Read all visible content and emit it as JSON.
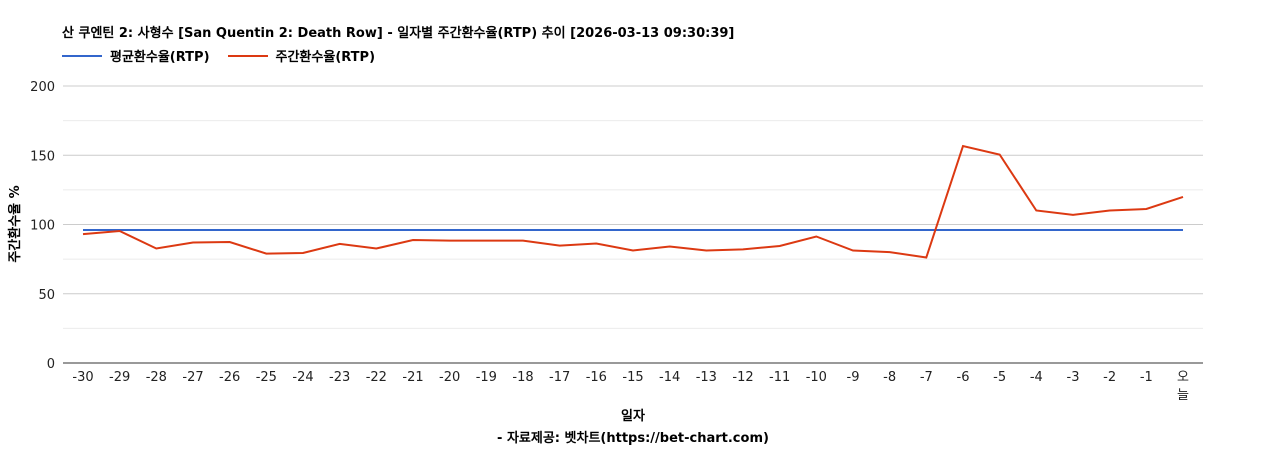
{
  "chart_data": {
    "type": "line",
    "title": "산 쿠엔틴 2: 사형수 [San Quentin 2: Death Row] - 일자별 주간환수율(RTP) 추이 [2026-03-13 09:30:39]",
    "xlabel": "일자",
    "ylabel": "주간환수율 %",
    "footer": "- 자료제공: 벳차트(https://bet-chart.com)",
    "ylim": [
      0,
      200
    ],
    "yticks": [
      "0",
      "50",
      "100",
      "150",
      "200"
    ],
    "grid": true,
    "legend_position": "top-left",
    "categories": [
      "-30",
      "-29",
      "-28",
      "-27",
      "-26",
      "-25",
      "-24",
      "-23",
      "-22",
      "-21",
      "-20",
      "-19",
      "-18",
      "-17",
      "-16",
      "-15",
      "-14",
      "-13",
      "-12",
      "-11",
      "-10",
      "-9",
      "-8",
      "-7",
      "-6",
      "-5",
      "-4",
      "-3",
      "-2",
      "-1",
      "오늘"
    ],
    "series": [
      {
        "name": "평균환수율(RTP)",
        "color": "#3366cc",
        "values": [
          96,
          96,
          96,
          96,
          96,
          96,
          96,
          96,
          96,
          96,
          96,
          96,
          96,
          96,
          96,
          96,
          96,
          96,
          96,
          96,
          96,
          96,
          96,
          96,
          96,
          96,
          96,
          96,
          96,
          96,
          96
        ]
      },
      {
        "name": "주간환수율(RTP)",
        "color": "#dc3912",
        "values": [
          93.1,
          95.3,
          82.7,
          87,
          87.4,
          79,
          79.4,
          86,
          82.7,
          88.8,
          88.4,
          88.4,
          88.4,
          84.8,
          86.3,
          81.2,
          84.1,
          81.2,
          82,
          84.5,
          91.3,
          81.2,
          80.1,
          76.2,
          156.7,
          150.5,
          110.1,
          106.9,
          110.1,
          111.2,
          119.9
        ]
      }
    ]
  }
}
